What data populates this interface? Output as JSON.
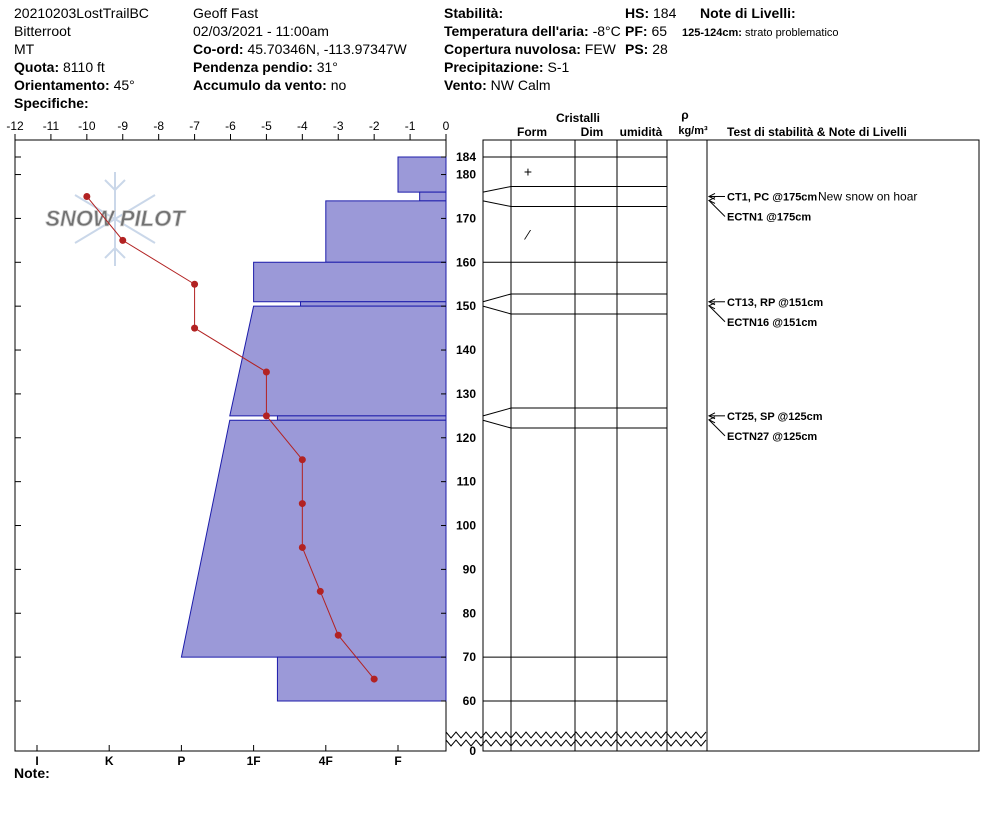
{
  "header": {
    "columns": [
      [
        {
          "value": "20210203LostTrailBC"
        },
        {
          "value": "Bitterroot"
        },
        {
          "value": "MT"
        },
        {
          "label": "Quota:",
          "value": "8110 ft"
        },
        {
          "label": "Orientamento:",
          "value": "45°"
        },
        {
          "label": "Specifiche:"
        }
      ],
      [
        {
          "value": "Geoff Fast"
        },
        {
          "value": "02/03/2021 - 11:00am"
        },
        {
          "label": "Co-ord:",
          "value": "45.70346N, -113.97347W"
        },
        {
          "label": "Pendenza pendio:",
          "value": "31°"
        },
        {
          "label": "Accumulo da vento:",
          "value": "no"
        }
      ],
      [
        {
          "label": "Stabilità:"
        },
        {
          "label": "Temperatura dell'aria:",
          "value": "-8°C"
        },
        {
          "label": "Copertura nuvolosa:",
          "value": "FEW"
        },
        {
          "label": "Precipitazione:",
          "value": "S-1"
        },
        {
          "label": "Vento:",
          "value": "NW Calm"
        }
      ],
      [
        {
          "label": "HS:",
          "value": "184"
        },
        {
          "label": "PF:",
          "value": "65"
        },
        {
          "label": "PS:",
          "value": "28"
        }
      ],
      [
        {
          "label": "Note di Livelli:"
        },
        {
          "label": "125-124cm:",
          "value": "strato problematico"
        }
      ]
    ]
  },
  "watermark": "SNOW PILOT",
  "table_headers": {
    "crystals": "Cristalli",
    "form": "Form",
    "size": "Dim",
    "moisture": "umidità",
    "density_symbol": "ρ",
    "density_unit": "kg/m³",
    "tests": "Test di stabilità & Note di Livelli"
  },
  "note_label": "Note:",
  "chart_data": {
    "type": "snowpit",
    "xlim": [
      -12,
      0
    ],
    "xticks": [
      -12,
      -11,
      -10,
      -9,
      -8,
      -7,
      -6,
      -5,
      -4,
      -3,
      -2,
      -1,
      0
    ],
    "ylim": [
      0,
      184
    ],
    "yticks": [
      184,
      180,
      170,
      160,
      150,
      140,
      130,
      120,
      110,
      100,
      90,
      80,
      70,
      60,
      0
    ],
    "hardness_ticks": [
      {
        "value": 6,
        "label": "I"
      },
      {
        "value": 5,
        "label": "K"
      },
      {
        "value": 4,
        "label": "P"
      },
      {
        "value": 3,
        "label": "1F"
      },
      {
        "value": 2,
        "label": "4F"
      },
      {
        "value": 1,
        "label": "F"
      }
    ],
    "hardness_color": "#9b99d8",
    "temperature": {
      "color": "#b22222",
      "heights": [
        175,
        165,
        155,
        145,
        135,
        125,
        115,
        105,
        95,
        85,
        75,
        65
      ],
      "values": [
        -10,
        -9,
        -7,
        -7,
        -5,
        -5,
        -4,
        -4,
        -4,
        -3.5,
        -3,
        -2
      ]
    },
    "layers": [
      {
        "top": 184,
        "bottom": 176,
        "hardness_top": 1,
        "hardness_bottom": 1,
        "form": "+"
      },
      {
        "top": 176,
        "bottom": 174,
        "hardness_top": 0.7,
        "hardness_bottom": 0.7
      },
      {
        "top": 174,
        "bottom": 160,
        "hardness_top": 2,
        "hardness_bottom": 2,
        "form": "⁄"
      },
      {
        "top": 160,
        "bottom": 151,
        "hardness_top": 3,
        "hardness_bottom": 3
      },
      {
        "top": 151,
        "bottom": 150,
        "hardness_top": 2.35,
        "hardness_bottom": 2.35
      },
      {
        "top": 150,
        "bottom": 125,
        "hardness_top": 3,
        "hardness_bottom": 3.33
      },
      {
        "top": 125,
        "bottom": 124,
        "hardness_top": 2.67,
        "hardness_bottom": 2.67
      },
      {
        "top": 124,
        "bottom": 70,
        "hardness_top": 3.33,
        "hardness_bottom": 4
      },
      {
        "top": 70,
        "bottom": 60,
        "hardness_top": 2.67,
        "hardness_bottom": 2.67
      }
    ],
    "tests": [
      {
        "height": 175,
        "entries": [
          {
            "label": "CT1, PC @175cm",
            "note": "New snow on hoar"
          },
          {
            "label": "ECTN1 @175cm"
          }
        ]
      },
      {
        "height": 151,
        "entries": [
          {
            "label": "CT13, RP @151cm"
          },
          {
            "label": "ECTN16 @151cm"
          }
        ]
      },
      {
        "height": 125,
        "entries": [
          {
            "label": "CT25, SP @125cm"
          },
          {
            "label": "ECTN27 @125cm"
          }
        ]
      }
    ]
  }
}
